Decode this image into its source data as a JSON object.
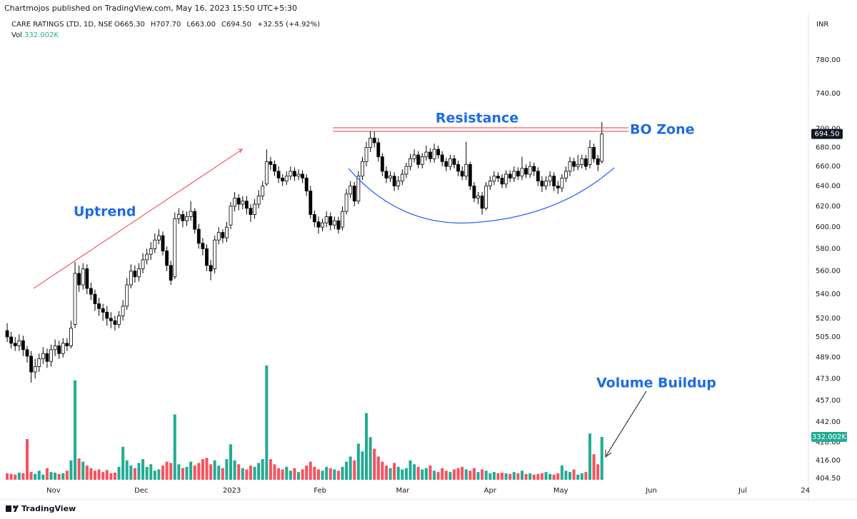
{
  "chart_data": {
    "type": "candlestick",
    "header": "Chartmojos published on TradingView.com, May 16, 2023 15:50 UTC+5:30",
    "title": "CARE RATINGS LTD, 1D, NSE",
    "legend_values": [
      "O665.30",
      "H707.70",
      "L663.00",
      "C694.50",
      "+32.55 (+4.92%)"
    ],
    "currency": "INR",
    "log_scale": true,
    "ylim": [
      400,
      838
    ],
    "yticks": [
      {
        "value": 780,
        "label": "780.00"
      },
      {
        "value": 740,
        "label": "740.00"
      },
      {
        "value": 700,
        "label": "700.00"
      },
      {
        "value": 680,
        "label": "680.00"
      },
      {
        "value": 660,
        "label": "660.00"
      },
      {
        "value": 640,
        "label": "640.00"
      },
      {
        "value": 620,
        "label": "620.00"
      },
      {
        "value": 600,
        "label": "600.00"
      },
      {
        "value": 580,
        "label": "580.00"
      },
      {
        "value": 560,
        "label": "560.00"
      },
      {
        "value": 540,
        "label": "540.00"
      },
      {
        "value": 520,
        "label": "520.00"
      },
      {
        "value": 505,
        "label": "505.00"
      },
      {
        "value": 489,
        "label": "489.00"
      },
      {
        "value": 473,
        "label": "473.00"
      },
      {
        "value": 457,
        "label": "457.00"
      },
      {
        "value": 442,
        "label": "442.00"
      },
      {
        "value": 428,
        "label": "428.00"
      },
      {
        "value": 416,
        "label": "416.00"
      },
      {
        "value": 404.5,
        "label": "404.50"
      }
    ],
    "xlim": [
      -1.8,
      200.4
    ],
    "xticks": [
      {
        "value": 11.6,
        "label": "Nov"
      },
      {
        "value": 33.6,
        "label": "Dec"
      },
      {
        "value": 56.3,
        "label": "2023"
      },
      {
        "value": 78.4,
        "label": "Feb"
      },
      {
        "value": 99.1,
        "label": "Mar"
      },
      {
        "value": 121,
        "label": "Apr"
      },
      {
        "value": 138.7,
        "label": "May"
      },
      {
        "value": 161.4,
        "label": "Jun"
      },
      {
        "value": 184.3,
        "label": "Jul"
      },
      {
        "value": 200,
        "label": "24"
      }
    ],
    "up_color": "#ffffff",
    "down_color": "#000000",
    "wick_color": "#000000",
    "open": [
      510,
      505,
      500,
      498,
      502,
      495,
      490,
      478,
      482,
      488,
      492,
      486,
      495,
      498,
      492,
      500,
      498,
      515,
      558,
      548,
      562,
      545,
      540,
      532,
      528,
      525,
      520,
      518,
      515,
      522,
      530,
      548,
      560,
      555,
      562,
      570,
      575,
      580,
      588,
      592,
      578,
      565,
      555,
      608,
      612,
      606,
      610,
      615,
      598,
      585,
      580,
      565,
      562,
      588,
      595,
      590,
      602,
      620,
      628,
      622,
      625,
      618,
      612,
      622,
      630,
      642,
      665,
      662,
      655,
      648,
      645,
      650,
      655,
      650,
      652,
      648,
      635,
      612,
      605,
      600,
      604,
      610,
      602,
      606,
      600,
      615,
      632,
      640,
      625,
      650,
      665,
      680,
      690,
      685,
      670,
      655,
      648,
      650,
      640,
      645,
      652,
      660,
      668,
      672,
      662,
      670,
      675,
      668,
      678,
      672,
      665,
      660,
      668,
      662,
      655,
      650,
      662,
      640,
      628,
      630,
      618,
      640,
      645,
      650,
      648,
      642,
      652,
      648,
      655,
      650,
      658,
      652,
      660,
      655,
      645,
      640,
      645,
      650,
      640,
      638,
      648,
      655,
      665,
      660,
      662,
      668,
      662,
      680,
      668,
      665.3
    ],
    "high": [
      516,
      509,
      505,
      507,
      506,
      498,
      494,
      488,
      492,
      497,
      496,
      499,
      503,
      502,
      504,
      504,
      518,
      568,
      565,
      567,
      566,
      550,
      544,
      537,
      532,
      530,
      525,
      522,
      526,
      535,
      554,
      566,
      565,
      567,
      576,
      580,
      586,
      594,
      598,
      596,
      582,
      569,
      614,
      618,
      616,
      615,
      625,
      618,
      603,
      590,
      584,
      570,
      592,
      600,
      598,
      605,
      624,
      634,
      632,
      630,
      630,
      622,
      627,
      636,
      645,
      678,
      670,
      666,
      660,
      652,
      655,
      660,
      659,
      657,
      656,
      652,
      640,
      616,
      610,
      608,
      615,
      614,
      610,
      610,
      620,
      637,
      645,
      644,
      655,
      670,
      686,
      698,
      697,
      690,
      674,
      660,
      655,
      654,
      650,
      657,
      664,
      673,
      678,
      676,
      674,
      682,
      679,
      684,
      682,
      676,
      669,
      672,
      672,
      666,
      660,
      686,
      665,
      644,
      634,
      634,
      644,
      650,
      655,
      654,
      652,
      656,
      656,
      660,
      659,
      670,
      662,
      665,
      664,
      659,
      650,
      650,
      655,
      654,
      645,
      652,
      660,
      670,
      669,
      672,
      672,
      672,
      688,
      684,
      672,
      707.7
    ],
    "low": [
      501,
      496,
      494,
      494,
      490,
      485,
      470,
      473,
      478,
      484,
      481,
      482,
      490,
      488,
      489,
      494,
      496,
      512,
      542,
      544,
      540,
      535,
      526,
      522,
      518,
      514,
      512,
      510,
      512,
      518,
      527,
      545,
      550,
      551,
      558,
      566,
      570,
      576,
      584,
      574,
      560,
      548,
      553,
      603,
      600,
      601,
      606,
      594,
      580,
      574,
      560,
      552,
      558,
      584,
      585,
      586,
      598,
      615,
      616,
      617,
      612,
      605,
      608,
      618,
      626,
      640,
      656,
      650,
      643,
      640,
      641,
      646,
      645,
      646,
      643,
      630,
      608,
      600,
      594,
      596,
      600,
      597,
      598,
      594,
      597,
      612,
      628,
      620,
      622,
      646,
      660,
      675,
      680,
      665,
      650,
      643,
      644,
      635,
      636,
      641,
      648,
      656,
      664,
      658,
      658,
      666,
      664,
      664,
      668,
      660,
      655,
      656,
      658,
      650,
      646,
      646,
      636,
      624,
      622,
      612,
      616,
      636,
      641,
      644,
      638,
      638,
      644,
      644,
      646,
      646,
      648,
      648,
      650,
      640,
      634,
      636,
      640,
      635,
      632,
      634,
      644,
      650,
      655,
      656,
      658,
      656,
      658,
      664,
      655,
      663
    ],
    "close": [
      505,
      500,
      498,
      502,
      495,
      490,
      478,
      482,
      488,
      492,
      486,
      495,
      498,
      492,
      500,
      498,
      512,
      558,
      548,
      562,
      545,
      540,
      532,
      528,
      525,
      520,
      518,
      515,
      522,
      530,
      548,
      560,
      555,
      562,
      570,
      575,
      580,
      588,
      592,
      578,
      565,
      552,
      608,
      612,
      606,
      610,
      615,
      598,
      585,
      580,
      565,
      560,
      588,
      595,
      590,
      600,
      620,
      628,
      622,
      625,
      618,
      612,
      622,
      630,
      640,
      665,
      662,
      655,
      648,
      645,
      650,
      655,
      650,
      652,
      648,
      635,
      612,
      605,
      600,
      604,
      610,
      602,
      606,
      598,
      615,
      632,
      640,
      625,
      650,
      665,
      680,
      690,
      685,
      670,
      655,
      648,
      650,
      640,
      645,
      652,
      660,
      668,
      672,
      662,
      670,
      675,
      668,
      678,
      672,
      665,
      660,
      668,
      662,
      655,
      650,
      662,
      640,
      628,
      630,
      618,
      640,
      645,
      650,
      648,
      642,
      652,
      648,
      655,
      650,
      658,
      652,
      660,
      655,
      645,
      640,
      645,
      650,
      640,
      638,
      648,
      655,
      665,
      660,
      662,
      668,
      660,
      680,
      668,
      662,
      694.5
    ],
    "last_price_label": "694.50",
    "volume": {
      "name": "Vol",
      "up_color": "#22ab94",
      "down_color": "#f7525f",
      "last_label": "332.002K",
      "values": [
        50,
        45,
        40,
        55,
        50,
        315,
        60,
        45,
        70,
        40,
        90,
        60,
        55,
        45,
        50,
        70,
        150,
        770,
        165,
        140,
        110,
        90,
        70,
        80,
        60,
        75,
        50,
        55,
        100,
        255,
        150,
        110,
        90,
        130,
        160,
        100,
        120,
        70,
        80,
        110,
        140,
        130,
        506,
        120,
        90,
        100,
        140,
        110,
        130,
        160,
        170,
        120,
        150,
        110,
        90,
        160,
        275,
        150,
        120,
        90,
        80,
        110,
        100,
        130,
        160,
        885,
        160,
        120,
        90,
        80,
        100,
        70,
        90,
        60,
        80,
        110,
        140,
        100,
        80,
        70,
        100,
        90,
        80,
        70,
        100,
        140,
        180,
        150,
        280,
        220,
        517,
        330,
        240,
        180,
        140,
        110,
        90,
        130,
        100,
        80,
        90,
        150,
        120,
        100,
        80,
        90,
        110,
        70,
        60,
        90,
        70,
        60,
        80,
        90,
        100,
        80,
        70,
        90,
        60,
        80,
        70,
        50,
        60,
        50,
        55,
        50,
        45,
        60,
        50,
        70,
        45,
        50,
        40,
        45,
        50,
        60,
        45,
        40,
        50,
        110,
        70,
        60,
        80,
        40,
        50,
        60,
        358,
        198,
        120,
        332.002
      ]
    },
    "annotations": {
      "resistance": "Resistance",
      "bo_zone": "BO Zone",
      "uptrend": "Uptrend",
      "volume_buildup": "Volume Buildup"
    },
    "footer": "TradingView"
  }
}
